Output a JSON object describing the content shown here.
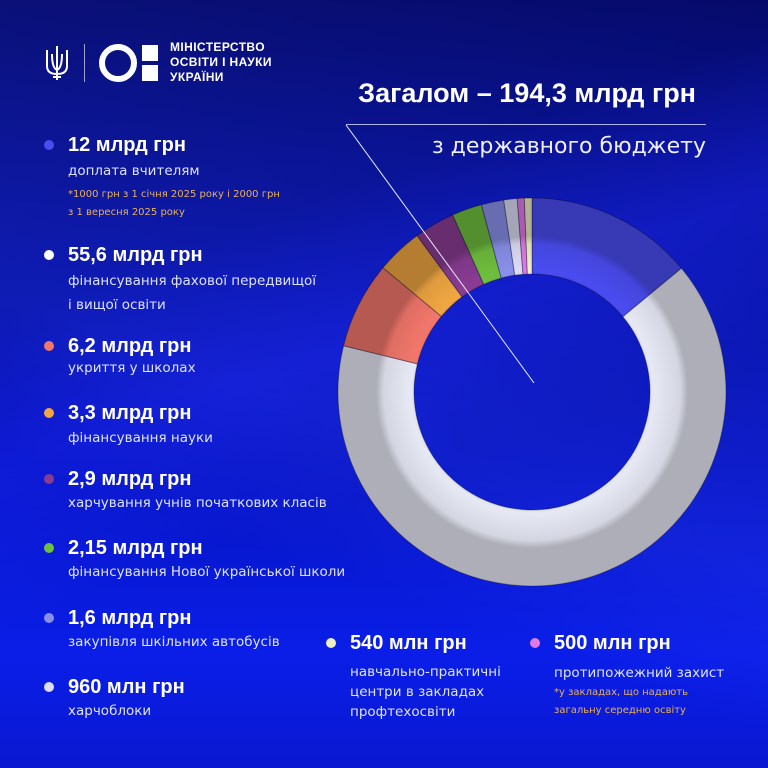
{
  "header": {
    "ministry_lines": [
      "МІНІСТЕРСТВО",
      "ОСВІТИ І НАУКИ",
      "УКРАЇНИ"
    ],
    "emblem_icon": "trident-icon",
    "logo_icon": "mon-logo-icon"
  },
  "title": {
    "total": "Загалом – 194,3 млрд грн",
    "subtitle": "з державного бюджету"
  },
  "legend": [
    {
      "amount": "12 млрд грн",
      "desc": [
        "доплата вчителям"
      ],
      "note": [
        "*1000 грн з 1 січня 2025 року і 2000 грн",
        "з 1 вересня 2025 року"
      ],
      "color": "#4a4cf0"
    },
    {
      "amount": "55,6 млрд грн",
      "desc": [
        "фінансування фахової передвищої",
        "і вищої освіти"
      ],
      "color": "#ffffff"
    },
    {
      "amount": "6,2 млрд грн",
      "desc": [
        "укриття у школах"
      ],
      "color": "#f2776b"
    },
    {
      "amount": "3,3 млрд грн",
      "desc": [
        "фінансування науки"
      ],
      "color": "#f0a742"
    },
    {
      "amount": "2,9 млрд грн",
      "desc": [
        "харчування учнів початкових класів"
      ],
      "color": "#8a3c92"
    },
    {
      "amount": "2,15 млрд грн",
      "desc": [
        "фінансування Нової української школи"
      ],
      "color": "#6fbf3e"
    },
    {
      "amount": "1,6 млрд грн",
      "desc": [
        "закупівля шкільних автобусів"
      ],
      "color": "#8a90ea"
    },
    {
      "amount": "960 млн грн",
      "desc": [
        "харчоблоки"
      ],
      "color": "#dcdcf5"
    },
    {
      "amount": "540 млн грн",
      "desc": [
        "навчально-практичні",
        "центри в закладах",
        "профтехосвіти"
      ],
      "color": "#efefc0"
    },
    {
      "amount": "500 млн грн",
      "desc": [
        "протипожежний захист"
      ],
      "note": [
        "*у закладах, що надають",
        "загальну середню освіту"
      ],
      "color": "#e07ae6"
    }
  ],
  "chart_data": {
    "type": "pie",
    "subtype": "donut",
    "title": "Загалом – 194,3 млрд грн",
    "subtitle": "з державного бюджету",
    "unit": "млрд грн",
    "categories": [
      "доплата вчителям",
      "фінансування фахової передвищої і вищої освіти",
      "укриття у школах",
      "фінансування науки",
      "харчування учнів початкових класів",
      "фінансування Нової української школи",
      "закупівля шкільних автобусів",
      "харчоблоки",
      "протипожежний захист",
      "навчально-практичні центри в закладах профтехосвіти"
    ],
    "values": [
      12,
      55.6,
      6.2,
      3.3,
      2.9,
      2.15,
      1.6,
      0.96,
      0.5,
      0.54
    ],
    "colors": [
      "#4a4cf0",
      "#e6e8f4",
      "#f2776b",
      "#f0a742",
      "#8a3c92",
      "#6fbf3e",
      "#8a90ea",
      "#dcdcf5",
      "#e07ae6",
      "#efefc0"
    ],
    "legend_position": "left and bottom",
    "notes": [
      "*1000 грн з 1 січня 2025 року і 2000 грн з 1 вересня 2025 року",
      "*у закладах, що надають загальну середню освіту"
    ]
  }
}
